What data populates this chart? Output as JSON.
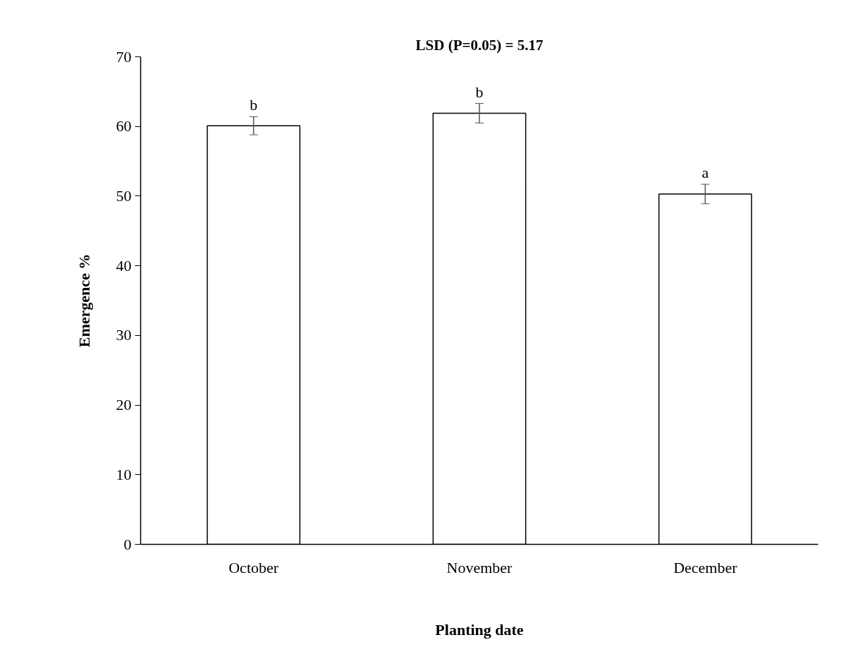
{
  "chart_data": {
    "type": "bar",
    "title": "LSD (P=0.05) = 5.17",
    "xlabel": "Planting date",
    "ylabel": "Emergence %",
    "categories": [
      "October",
      "November",
      "December"
    ],
    "values": [
      60.1,
      61.9,
      50.3
    ],
    "errors": [
      1.3,
      1.4,
      1.4
    ],
    "color": "#ffffff",
    "ylim": [
      0,
      70
    ],
    "yticks": [
      0,
      10,
      20,
      30,
      40,
      50,
      60,
      70
    ],
    "grid": false,
    "annotations": [
      {
        "text": "b",
        "x": "October",
        "y": 61.6
      },
      {
        "text": "b",
        "x": "November",
        "y": 63.5
      },
      {
        "text": "a",
        "x": "December",
        "y": 51.9
      }
    ]
  }
}
